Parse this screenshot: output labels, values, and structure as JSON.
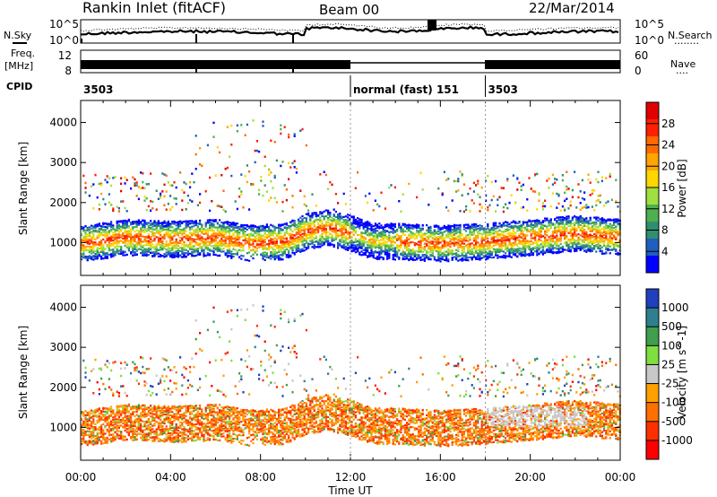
{
  "header": {
    "station": "Rankin Inlet (fitACF)",
    "beam": "Beam 00",
    "date": "22/Mar/2014"
  },
  "side_labels": {
    "nsky": "N.Sky",
    "nsearch": "N.Search",
    "nsearch_line": "........",
    "freq": "Freq.",
    "freq_unit": "[MHz]",
    "nave": "Nave",
    "nave_line": "....",
    "cpid": "CPID"
  },
  "noise_axis": {
    "left_top": "10^5",
    "left_bottom": "10^0",
    "right_top": "10^5",
    "right_bottom": "10^0"
  },
  "freq_axis": {
    "left_top": "12",
    "left_bottom": "8",
    "right_top": "60",
    "right_bottom": "0"
  },
  "cpid_segments": [
    {
      "label": "3503",
      "start_hour": 0
    },
    {
      "label": "normal (fast) 151",
      "start_hour": 12
    },
    {
      "label": "3503",
      "start_hour": 18
    }
  ],
  "colors": {
    "power_scale": [
      "#0000ff",
      "#1f5fbf",
      "#2f8f6f",
      "#4fb04f",
      "#9fdf3f",
      "#ffd700",
      "#ffa500",
      "#ff6a00",
      "#ff2000",
      "#e00000"
    ],
    "velocity_scale": [
      "#2040c0",
      "#2f7f8f",
      "#3f9f4f",
      "#7fdf3f",
      "#c8c8c8",
      "#ffa000",
      "#ff7000",
      "#ff3000",
      "#ff0000"
    ]
  },
  "chart_data": [
    {
      "type": "heatmap",
      "title": "",
      "xlabel": "Time UT",
      "ylabel": "Slant Range [km]",
      "xlim": [
        0,
        24
      ],
      "ylim": [
        180,
        4550
      ],
      "x_ticks": [
        "00:00",
        "04:00",
        "08:00",
        "12:00",
        "16:00",
        "20:00",
        "00:00"
      ],
      "y_ticks": [
        1000,
        2000,
        3000,
        4000
      ],
      "colorbar": {
        "label": "Power [dB]",
        "ticks": [
          4,
          8,
          12,
          16,
          20,
          24,
          28
        ],
        "range": [
          0,
          30
        ]
      },
      "band_centers_km": [
        [
          0,
          1000
        ],
        [
          2,
          1150
        ],
        [
          4,
          1100
        ],
        [
          6,
          1150
        ],
        [
          7.5,
          1000
        ],
        [
          9,
          1050
        ],
        [
          10,
          1300
        ],
        [
          11,
          1400
        ],
        [
          12,
          1250
        ],
        [
          13,
          1050
        ],
        [
          14,
          1050
        ],
        [
          16,
          1000
        ],
        [
          18,
          1050
        ],
        [
          20,
          1150
        ],
        [
          22,
          1250
        ],
        [
          24,
          1150
        ]
      ]
    },
    {
      "type": "heatmap",
      "title": "",
      "xlabel": "Time UT",
      "ylabel": "Slant Range [km]",
      "xlim": [
        0,
        24
      ],
      "ylim": [
        180,
        4550
      ],
      "x_ticks": [
        "00:00",
        "04:00",
        "08:00",
        "12:00",
        "16:00",
        "20:00",
        "00:00"
      ],
      "y_ticks": [
        1000,
        2000,
        3000,
        4000
      ],
      "colorbar": {
        "label": "Velocity [m s^-1]",
        "ticks": [
          "1000",
          "500",
          "100",
          "25",
          "-25",
          "-100",
          "-500",
          "-1000"
        ],
        "range": [
          -1000,
          1000
        ]
      }
    }
  ]
}
